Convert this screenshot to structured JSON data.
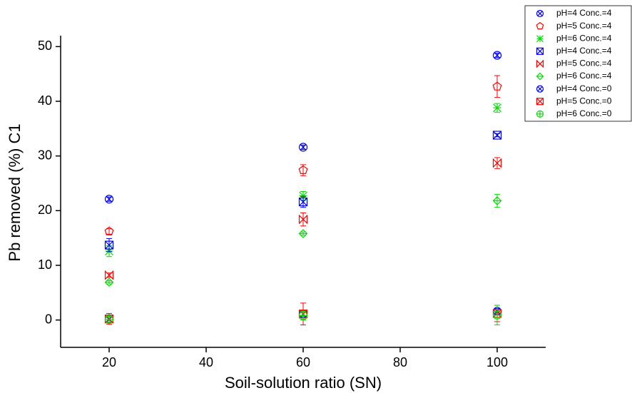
{
  "chart_data": {
    "type": "scatter",
    "x_label": "Soil-solution ratio (SN)",
    "y_label": "Pb removed (%) C1",
    "x": [
      20,
      60,
      100
    ],
    "xlim": [
      10,
      110
    ],
    "xticks": [
      20,
      40,
      60,
      80,
      100
    ],
    "ylim": [
      -5,
      52
    ],
    "yticks": [
      0,
      10,
      20,
      30,
      40,
      50
    ],
    "legend": "upper right",
    "series": [
      {
        "name": "pH=4 Conc.=4",
        "color": "#0000ff",
        "marker": "circle-x",
        "values": [
          22.1,
          31.6,
          48.4
        ],
        "errors": [
          0.4,
          0.4,
          0.4
        ]
      },
      {
        "name": "pH=5 Conc.=4",
        "color": "#ff0000",
        "marker": "pentagon",
        "values": [
          16.2,
          27.4,
          42.7
        ],
        "errors": [
          0.5,
          1.0,
          2.0
        ]
      },
      {
        "name": "pH=6 Conc.=4",
        "color": "#00dd00",
        "marker": "asterisk",
        "values": [
          12.6,
          22.7,
          38.8
        ],
        "errors": [
          1.0,
          0.8,
          0.8
        ]
      },
      {
        "name": "pH=4 Conc.=4",
        "color": "#0000ff",
        "marker": "square-x",
        "values": [
          13.7,
          21.6,
          33.8
        ],
        "errors": [
          1.2,
          1.0,
          0.3
        ]
      },
      {
        "name": "pH=5 Conc.=4",
        "color": "#ff0000",
        "marker": "bowtie",
        "values": [
          8.2,
          18.4,
          28.7
        ],
        "errors": [
          0.4,
          1.2,
          1.0
        ]
      },
      {
        "name": "pH=6 Conc.=4",
        "color": "#00dd00",
        "marker": "diamond-plus",
        "values": [
          6.9,
          15.8,
          21.8
        ],
        "errors": [
          0.3,
          0.3,
          1.2
        ]
      },
      {
        "name": "pH=4 Conc.=0",
        "color": "#0000ff",
        "marker": "circle-x",
        "values": [
          0.1,
          1.1,
          1.6
        ],
        "errors": [
          0.5,
          0.5,
          0.5
        ]
      },
      {
        "name": "pH=5 Conc.=0",
        "color": "#ff0000",
        "marker": "square-x",
        "values": [
          0.2,
          1.1,
          1.2
        ],
        "errors": [
          1.0,
          2.0,
          1.5
        ]
      },
      {
        "name": "pH=6 Conc.=0",
        "color": "#00dd00",
        "marker": "circle-plus",
        "values": [
          0.1,
          0.8,
          0.9
        ],
        "errors": [
          0.5,
          0.8,
          1.8
        ]
      }
    ]
  }
}
